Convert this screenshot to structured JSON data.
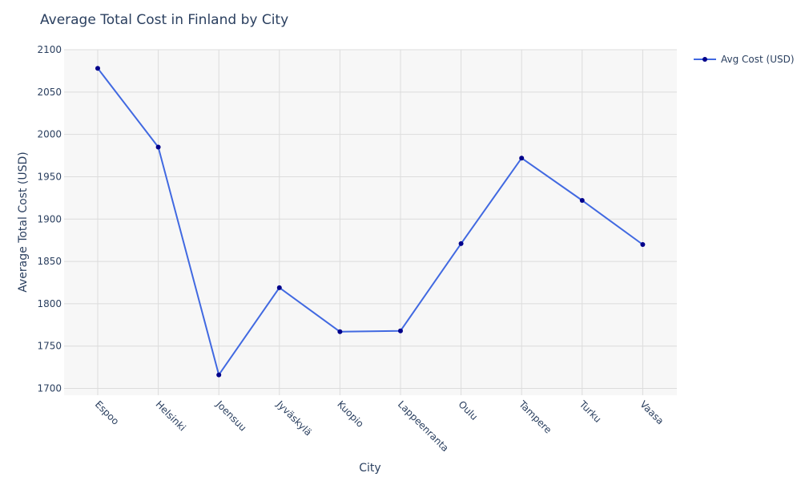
{
  "chart_data": {
    "type": "line",
    "title": "Average Total Cost in Finland by City",
    "xlabel": "City",
    "ylabel": "Average Total Cost (USD)",
    "categories": [
      "Espoo",
      "Helsinki",
      "Joensuu",
      "Jyväskylä",
      "Kuopio",
      "Lappeenranta",
      "Oulu",
      "Tampere",
      "Turku",
      "Vaasa"
    ],
    "series": [
      {
        "name": "Avg Cost (USD)",
        "values": [
          2078,
          1985,
          1716,
          1819,
          1767,
          1768,
          1871,
          1972,
          1922,
          1870
        ],
        "line_color": "#4169e1",
        "marker_color": "#00008b"
      }
    ],
    "ylim": [
      1692,
      2100
    ],
    "yticks": [
      1700,
      1750,
      1800,
      1850,
      1900,
      1950,
      2000,
      2050,
      2100
    ],
    "grid": true,
    "legend_position": "top-right",
    "plot_background": "#f7f7f7",
    "grid_color": "#dcdcdc"
  }
}
